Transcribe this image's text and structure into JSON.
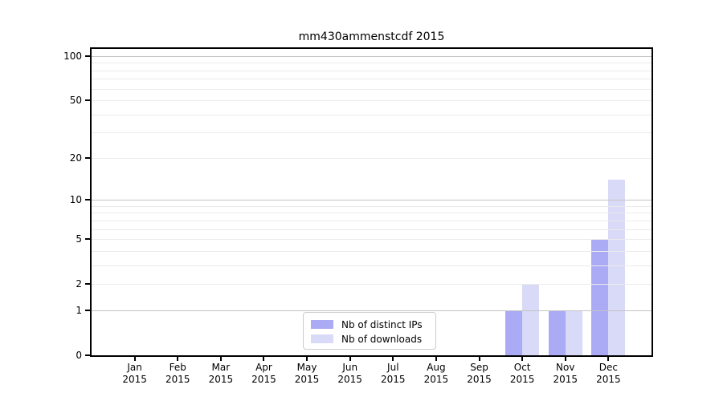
{
  "title": "mm430ammenstcdf 2015",
  "chart_data": {
    "type": "bar",
    "categories": [
      {
        "month": "Jan",
        "year": "2015"
      },
      {
        "month": "Feb",
        "year": "2015"
      },
      {
        "month": "Mar",
        "year": "2015"
      },
      {
        "month": "Apr",
        "year": "2015"
      },
      {
        "month": "May",
        "year": "2015"
      },
      {
        "month": "Jun",
        "year": "2015"
      },
      {
        "month": "Jul",
        "year": "2015"
      },
      {
        "month": "Aug",
        "year": "2015"
      },
      {
        "month": "Sep",
        "year": "2015"
      },
      {
        "month": "Oct",
        "year": "2015"
      },
      {
        "month": "Nov",
        "year": "2015"
      },
      {
        "month": "Dec",
        "year": "2015"
      }
    ],
    "series": [
      {
        "name": "Nb of distinct IPs",
        "color": "#aaaaf5",
        "values": [
          0,
          0,
          0,
          0,
          0,
          0,
          0,
          0,
          0,
          1,
          1,
          5
        ]
      },
      {
        "name": "Nb of downloads",
        "color": "#d9d9f8",
        "values": [
          0,
          0,
          0,
          0,
          0,
          0,
          0,
          0,
          0,
          2,
          1,
          14
        ]
      }
    ],
    "title": "mm430ammenstcdf 2015",
    "xlabel": "",
    "ylabel": "",
    "y_axis": {
      "scale": "log1p",
      "ticks": [
        0,
        1,
        2,
        5,
        10,
        20,
        50,
        100
      ],
      "minor_gridlines": [
        2,
        3,
        4,
        5,
        6,
        7,
        8,
        9,
        20,
        30,
        40,
        50,
        60,
        70,
        80,
        90
      ],
      "major_gridlines": [
        1,
        10,
        100
      ],
      "ylim": [
        0,
        112
      ]
    },
    "grid": "on",
    "legend_position": "bottom-center"
  },
  "colors": {
    "major_grid": "#c4c4c4",
    "minor_grid": "#ebebeb",
    "spine": "#000000",
    "background": "#ffffff"
  }
}
